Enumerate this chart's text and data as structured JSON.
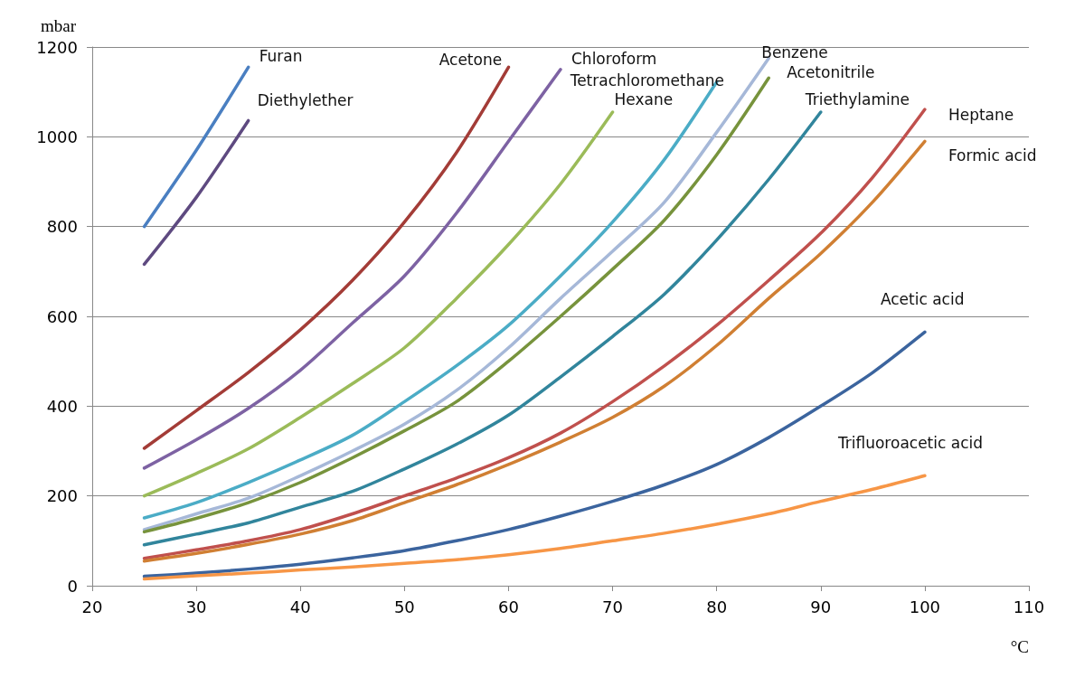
{
  "chart_data": {
    "type": "line",
    "xlabel": "°C",
    "ylabel": "mbar",
    "xlim": [
      20,
      110
    ],
    "xticks": [
      20,
      30,
      40,
      50,
      60,
      70,
      80,
      90,
      100,
      110
    ],
    "ylim": [
      0,
      1200
    ],
    "yticks": [
      0,
      200,
      400,
      600,
      800,
      1000,
      1200
    ],
    "grid": "y",
    "series": [
      {
        "name": "Furan",
        "color": "#4a7fc1",
        "x": [
          25,
          30,
          35
        ],
        "values": [
          800,
          970,
          1155
        ]
      },
      {
        "name": "Diethylether",
        "color": "#5e4a80",
        "x": [
          25,
          30,
          35
        ],
        "values": [
          716,
          865,
          1036
        ]
      },
      {
        "name": "Acetone",
        "color": "#a33c37",
        "x": [
          25,
          30,
          35,
          40,
          45,
          50,
          55,
          60
        ],
        "values": [
          306,
          390,
          475,
          570,
          680,
          810,
          965,
          1155
        ]
      },
      {
        "name": "Chloroform",
        "color": "#7d62a3",
        "x": [
          25,
          30,
          35,
          40,
          45,
          50,
          55,
          60,
          65
        ],
        "values": [
          262,
          325,
          395,
          480,
          585,
          690,
          830,
          990,
          1150
        ]
      },
      {
        "name": "Tetrachloromethane",
        "color": "#4bacc6",
        "x": [
          25,
          30,
          35,
          40,
          45,
          50,
          55,
          60,
          65,
          70,
          75,
          80
        ],
        "values": [
          151,
          185,
          230,
          280,
          335,
          410,
          490,
          580,
          690,
          810,
          950,
          1122
        ]
      },
      {
        "name": "Hexane",
        "color": "#9bbb59",
        "x": [
          25,
          30,
          35,
          40,
          45,
          50,
          55,
          60,
          65,
          70
        ],
        "values": [
          200,
          250,
          305,
          375,
          450,
          530,
          640,
          760,
          895,
          1055
        ]
      },
      {
        "name": "Benzene",
        "color": "#a6b8d8",
        "x": [
          25,
          30,
          35,
          40,
          45,
          50,
          55,
          60,
          65,
          70,
          75,
          80,
          85
        ],
        "values": [
          125,
          160,
          195,
          245,
          300,
          360,
          435,
          530,
          640,
          745,
          855,
          1010,
          1175
        ]
      },
      {
        "name": "Acetonitrile",
        "color": "#77933c",
        "x": [
          25,
          30,
          35,
          40,
          45,
          50,
          55,
          60,
          65,
          70,
          75,
          80,
          85
        ],
        "values": [
          120,
          150,
          185,
          230,
          285,
          345,
          410,
          500,
          600,
          705,
          815,
          960,
          1131
        ]
      },
      {
        "name": "Triethylamine",
        "color": "#31859c",
        "x": [
          25,
          30,
          35,
          40,
          45,
          50,
          55,
          60,
          65,
          70,
          75,
          80,
          85,
          90
        ],
        "values": [
          91,
          115,
          140,
          175,
          210,
          260,
          315,
          380,
          465,
          555,
          650,
          770,
          905,
          1055
        ]
      },
      {
        "name": "Heptane",
        "color": "#c0504d",
        "x": [
          25,
          30,
          35,
          40,
          45,
          50,
          55,
          60,
          65,
          70,
          75,
          80,
          85,
          90,
          95,
          100
        ],
        "values": [
          61,
          80,
          100,
          125,
          160,
          200,
          240,
          285,
          340,
          410,
          490,
          580,
          680,
          785,
          910,
          1061
        ]
      },
      {
        "name": "Formic acid",
        "color": "#d07f33",
        "x": [
          25,
          30,
          35,
          40,
          45,
          50,
          55,
          60,
          65,
          70,
          75,
          80,
          85,
          90,
          95,
          100
        ],
        "values": [
          55,
          72,
          92,
          115,
          145,
          185,
          225,
          270,
          320,
          375,
          445,
          535,
          640,
          740,
          855,
          990
        ]
      },
      {
        "name": "Acetic acid",
        "color": "#3b649e",
        "x": [
          25,
          30,
          35,
          40,
          45,
          50,
          55,
          60,
          65,
          70,
          75,
          80,
          85,
          90,
          95,
          100
        ],
        "values": [
          21,
          28,
          37,
          48,
          62,
          78,
          100,
          125,
          155,
          188,
          225,
          270,
          330,
          400,
          475,
          565
        ]
      },
      {
        "name": "Trifluoroacetic acid",
        "color": "#f79646",
        "x": [
          25,
          30,
          35,
          40,
          45,
          50,
          55,
          60,
          65,
          70,
          75,
          80,
          85,
          90,
          95,
          100
        ],
        "values": [
          15,
          22,
          28,
          35,
          42,
          50,
          58,
          69,
          83,
          100,
          117,
          137,
          160,
          188,
          215,
          245
        ]
      }
    ]
  }
}
